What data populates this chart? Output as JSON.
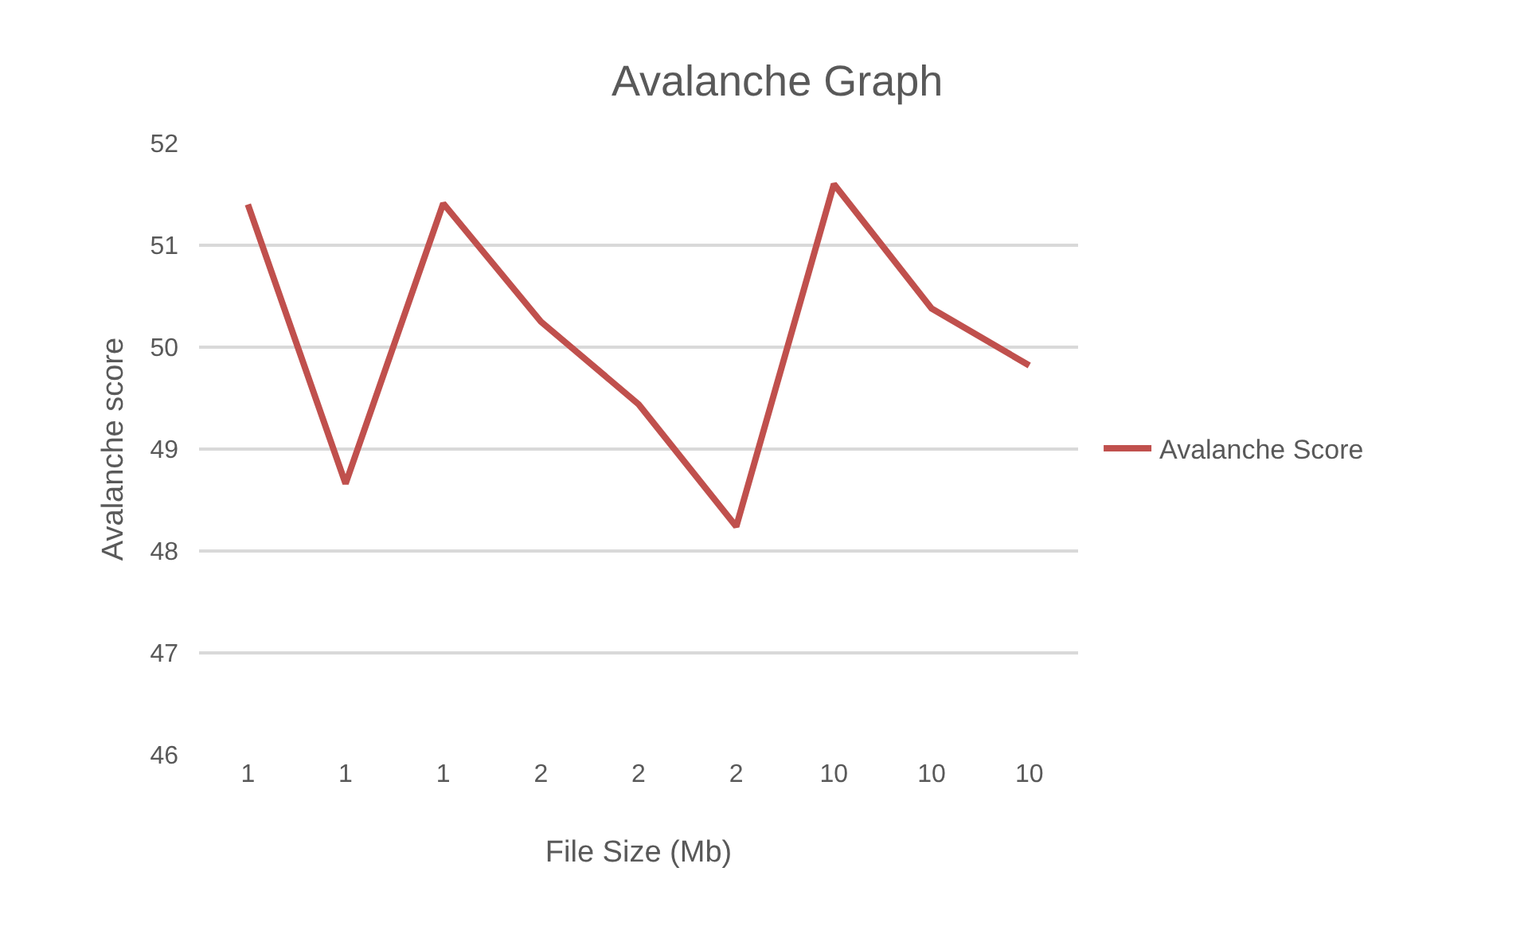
{
  "chart_data": {
    "type": "line",
    "title": "Avalanche Graph",
    "xlabel": "File Size (Mb)",
    "ylabel": "Avalanche score",
    "categories": [
      "1",
      "1",
      "1",
      "2",
      "2",
      "2",
      "10",
      "10",
      "10"
    ],
    "series": [
      {
        "name": "Avalanche Score",
        "color": "#c0504d",
        "values": [
          51.4,
          48.66,
          51.41,
          50.25,
          49.44,
          48.24,
          51.6,
          50.38,
          49.82
        ]
      }
    ],
    "ylim": [
      46,
      52
    ],
    "yticks": [
      46,
      47,
      48,
      49,
      50,
      51,
      52
    ],
    "grid": "y",
    "legend": "right",
    "line_style": "solid",
    "marker": "none"
  }
}
